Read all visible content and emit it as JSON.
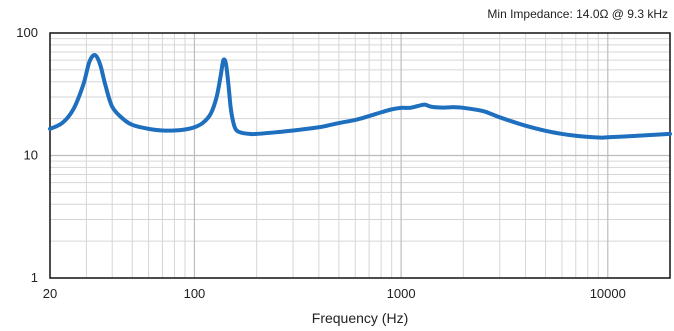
{
  "chart_data": {
    "type": "line",
    "title": "",
    "annotation": "Min Impedance: 14.0Ω @ 9.3 kHz",
    "xlabel": "Frequency (Hz)",
    "ylabel": "",
    "x_scale": "log",
    "y_scale": "log",
    "xlim": [
      20,
      20000
    ],
    "ylim": [
      1,
      100
    ],
    "x_ticks": [
      {
        "value": 20,
        "label": "20"
      },
      {
        "value": 100,
        "label": "100"
      },
      {
        "value": 1000,
        "label": "1000"
      },
      {
        "value": 10000,
        "label": "10000"
      }
    ],
    "y_ticks": [
      {
        "value": 1,
        "label": "1"
      },
      {
        "value": 10,
        "label": "10"
      },
      {
        "value": 100,
        "label": "100"
      }
    ],
    "grid": true,
    "line_color": "#1f6fbf",
    "series": [
      {
        "name": "",
        "x": [
          20,
          23,
          26,
          29,
          31,
          33,
          35,
          37,
          40,
          45,
          50,
          60,
          70,
          80,
          90,
          100,
          110,
          120,
          128,
          134,
          138,
          142,
          146,
          150,
          155,
          160,
          170,
          185,
          200,
          250,
          300,
          400,
          500,
          600,
          700,
          800,
          900,
          1000,
          1100,
          1200,
          1300,
          1400,
          1600,
          1800,
          2000,
          2500,
          3000,
          4000,
          5000,
          6000,
          7000,
          8000,
          9300,
          10000,
          12000,
          15000,
          20000
        ],
        "y": [
          16.5,
          18.5,
          24,
          38,
          58,
          66,
          55,
          38,
          25,
          20,
          17.8,
          16.5,
          16,
          16,
          16.3,
          17,
          18.5,
          22,
          30,
          45,
          60,
          56,
          38,
          24,
          18,
          16,
          15.3,
          15,
          15,
          15.5,
          16,
          17,
          18.4,
          19.5,
          21,
          22.5,
          23.8,
          24.5,
          24.5,
          25.3,
          26,
          25,
          24.6,
          24.8,
          24.5,
          23,
          20.5,
          17.5,
          15.9,
          15,
          14.5,
          14.2,
          14,
          14.1,
          14.3,
          14.6,
          15
        ]
      }
    ]
  }
}
